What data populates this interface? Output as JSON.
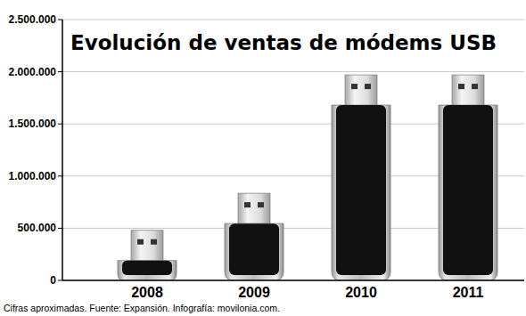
{
  "chart_data": {
    "type": "bar",
    "title": "Evolución de ventas de módems USB",
    "categories": [
      "2008",
      "2009",
      "2010",
      "2011"
    ],
    "values": [
      190000,
      545000,
      1680000,
      1680000
    ],
    "color": "#111111",
    "ylim": [
      0,
      2500000
    ],
    "yticks": [
      0,
      {
        "value": 500000,
        "label": "500.000"
      },
      {
        "value": 1000000,
        "label": "1.000.000"
      },
      {
        "value": 1500000,
        "label": "1.500.000"
      },
      {
        "value": 2000000,
        "label": "2.000.000"
      },
      {
        "value": 2500000,
        "label": "2.500.000"
      }
    ],
    "grid": true,
    "source": "Cifras aproximadas. Fuente: Expansión. Infografía: movilonia.com."
  }
}
